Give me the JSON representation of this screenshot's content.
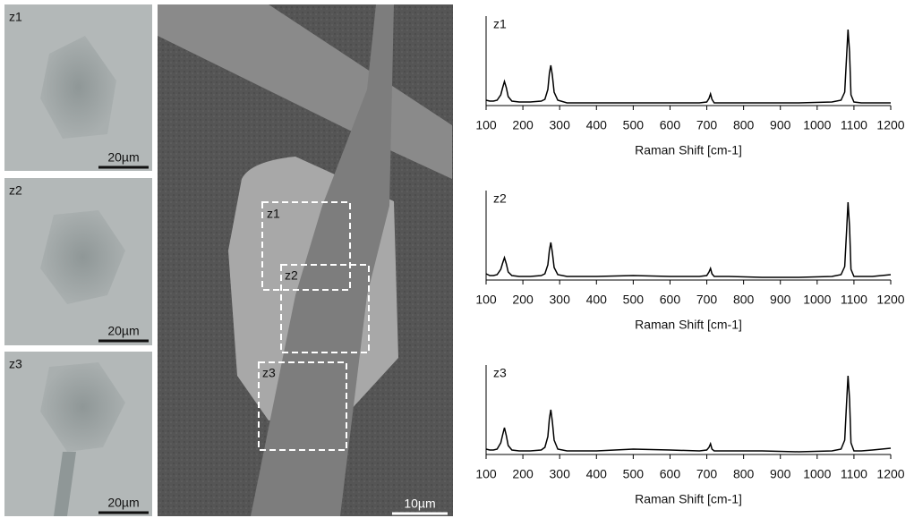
{
  "panels": [
    {
      "label": "z1",
      "scale": "20µm"
    },
    {
      "label": "z2",
      "scale": "20µm"
    },
    {
      "label": "z3",
      "scale": "20µm"
    }
  ],
  "sem": {
    "scale": "10µm",
    "regions": [
      "z1",
      "z2",
      "z3"
    ]
  },
  "chart_data": [
    {
      "type": "line",
      "label": "z1",
      "xlabel": "Raman Shift [cm-1]",
      "x": [
        100,
        110,
        120,
        130,
        140,
        145,
        150,
        155,
        160,
        170,
        190,
        220,
        250,
        260,
        268,
        272,
        276,
        280,
        285,
        295,
        320,
        400,
        500,
        600,
        680,
        700,
        706,
        710,
        714,
        720,
        760,
        850,
        950,
        1040,
        1065,
        1075,
        1080,
        1084,
        1088,
        1092,
        1100,
        1120,
        1150,
        1200
      ],
      "series": [
        {
          "color": "#000000",
          "values": [
            0.06,
            0.05,
            0.05,
            0.06,
            0.12,
            0.2,
            0.27,
            0.2,
            0.1,
            0.05,
            0.04,
            0.04,
            0.05,
            0.07,
            0.18,
            0.36,
            0.45,
            0.34,
            0.15,
            0.06,
            0.03,
            0.03,
            0.03,
            0.03,
            0.03,
            0.04,
            0.08,
            0.13,
            0.07,
            0.03,
            0.03,
            0.03,
            0.03,
            0.04,
            0.06,
            0.15,
            0.55,
            0.85,
            0.6,
            0.12,
            0.04,
            0.03,
            0.03,
            0.03
          ]
        }
      ],
      "xlim": [
        100,
        1200
      ],
      "xticks": [
        100,
        200,
        300,
        400,
        500,
        600,
        700,
        800,
        900,
        1000,
        1100,
        1200
      ],
      "ylim": [
        0,
        1
      ]
    },
    {
      "type": "line",
      "label": "z2",
      "xlabel": "Raman Shift [cm-1]",
      "x": [
        100,
        110,
        120,
        130,
        140,
        145,
        150,
        155,
        160,
        170,
        190,
        220,
        250,
        260,
        268,
        272,
        276,
        280,
        285,
        295,
        320,
        400,
        500,
        600,
        680,
        700,
        706,
        710,
        714,
        720,
        760,
        850,
        950,
        1040,
        1065,
        1075,
        1080,
        1084,
        1088,
        1092,
        1100,
        1120,
        1150,
        1200
      ],
      "series": [
        {
          "color": "#000000",
          "values": [
            0.07,
            0.05,
            0.05,
            0.06,
            0.12,
            0.19,
            0.25,
            0.18,
            0.09,
            0.05,
            0.04,
            0.04,
            0.05,
            0.07,
            0.17,
            0.33,
            0.42,
            0.31,
            0.14,
            0.06,
            0.04,
            0.04,
            0.05,
            0.04,
            0.04,
            0.05,
            0.09,
            0.13,
            0.07,
            0.04,
            0.04,
            0.03,
            0.03,
            0.04,
            0.06,
            0.15,
            0.55,
            0.87,
            0.6,
            0.12,
            0.04,
            0.04,
            0.04,
            0.06
          ]
        }
      ],
      "xlim": [
        100,
        1200
      ],
      "xticks": [
        100,
        200,
        300,
        400,
        500,
        600,
        700,
        800,
        900,
        1000,
        1100,
        1200
      ],
      "ylim": [
        0,
        1
      ]
    },
    {
      "type": "line",
      "label": "z3",
      "xlabel": "Raman Shift [cm-1]",
      "x": [
        100,
        110,
        120,
        130,
        140,
        145,
        150,
        155,
        160,
        170,
        190,
        220,
        250,
        260,
        268,
        272,
        276,
        280,
        285,
        295,
        320,
        400,
        500,
        600,
        680,
        700,
        706,
        710,
        714,
        720,
        760,
        850,
        950,
        1040,
        1065,
        1075,
        1080,
        1084,
        1088,
        1092,
        1100,
        1120,
        1150,
        1200
      ],
      "series": [
        {
          "color": "#000000",
          "values": [
            0.06,
            0.05,
            0.05,
            0.06,
            0.13,
            0.22,
            0.3,
            0.21,
            0.1,
            0.05,
            0.04,
            0.04,
            0.05,
            0.08,
            0.2,
            0.4,
            0.5,
            0.37,
            0.16,
            0.06,
            0.04,
            0.04,
            0.06,
            0.05,
            0.04,
            0.05,
            0.08,
            0.12,
            0.06,
            0.04,
            0.04,
            0.04,
            0.03,
            0.04,
            0.06,
            0.16,
            0.58,
            0.88,
            0.62,
            0.13,
            0.04,
            0.04,
            0.05,
            0.07
          ]
        }
      ],
      "xlim": [
        100,
        1200
      ],
      "xticks": [
        100,
        200,
        300,
        400,
        500,
        600,
        700,
        800,
        900,
        1000,
        1100,
        1200
      ],
      "ylim": [
        0,
        1
      ]
    }
  ]
}
